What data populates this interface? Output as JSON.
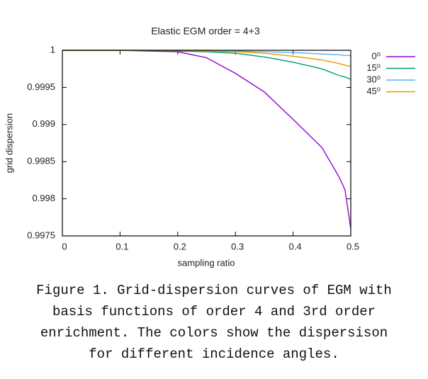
{
  "chart_data": {
    "type": "line",
    "title": "Elastic EGM order = 4+3",
    "xlabel": "sampling ratio",
    "ylabel": "grid dispersion",
    "x": [
      0,
      0.05,
      0.1,
      0.15,
      0.2,
      0.25,
      0.3,
      0.35,
      0.4,
      0.45,
      0.48,
      0.49,
      0.5
    ],
    "series": [
      {
        "name": "0⁰",
        "color": "#9400d3",
        "values": [
          1,
          1,
          1,
          0.99999,
          0.99998,
          0.9999,
          0.99969,
          0.99944,
          0.99907,
          0.99869,
          0.99829,
          0.99812,
          0.9976
        ]
      },
      {
        "name": "15⁰",
        "color": "#009e73",
        "values": [
          1,
          1,
          1,
          1,
          0.99999,
          0.99998,
          0.99996,
          0.99991,
          0.99984,
          0.99975,
          0.99966,
          0.99964,
          0.99961
        ]
      },
      {
        "name": "30⁰",
        "color": "#56b4e9",
        "values": [
          1,
          1,
          1,
          1,
          1,
          1,
          0.99999,
          0.99998,
          0.99997,
          0.99995,
          0.99994,
          0.99993,
          0.99993
        ]
      },
      {
        "name": "45⁰",
        "color": "#e69f00",
        "values": [
          1,
          1,
          1,
          1,
          1,
          0.99999,
          0.99998,
          0.99996,
          0.99992,
          0.99987,
          0.99982,
          0.9998,
          0.99978
        ]
      }
    ],
    "xlim": [
      0,
      0.5
    ],
    "xticks": [
      0,
      0.1,
      0.2,
      0.3,
      0.4,
      0.5
    ],
    "ylim": [
      0.9975,
      1
    ],
    "yticks": [
      0.9975,
      0.998,
      0.9985,
      0.999,
      0.9995,
      1
    ],
    "legend": "outside-right"
  },
  "caption": [
    "Figure 1. Grid-dispersion curves of EGM with",
    "basis functions of order 4 and 3rd order",
    "enrichment. The colors show the dispersison",
    "for different incidence angles."
  ]
}
